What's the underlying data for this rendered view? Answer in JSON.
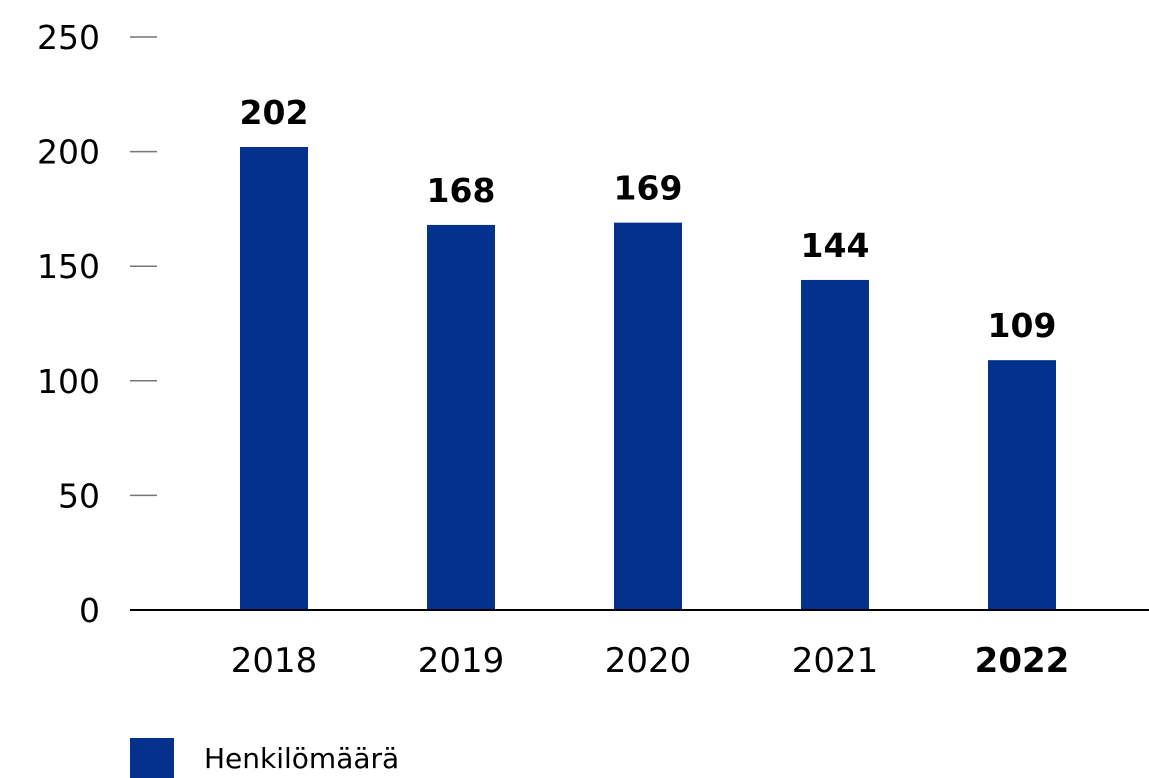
{
  "chart_data": {
    "type": "bar",
    "categories": [
      "2018",
      "2019",
      "2020",
      "2021",
      "2022"
    ],
    "highlighted_category": "2022",
    "series": [
      {
        "name": "Henkilömäärä",
        "values": [
          202,
          168,
          169,
          144,
          109
        ],
        "color": "#04318d"
      }
    ],
    "data_labels": [
      "202",
      "168",
      "169",
      "144",
      "109"
    ],
    "ylim": [
      0,
      250
    ],
    "yticks": [
      0,
      50,
      100,
      150,
      200,
      250
    ],
    "grid": false,
    "legend_position": "bottom-left",
    "title": "",
    "xlabel": "",
    "ylabel": ""
  }
}
